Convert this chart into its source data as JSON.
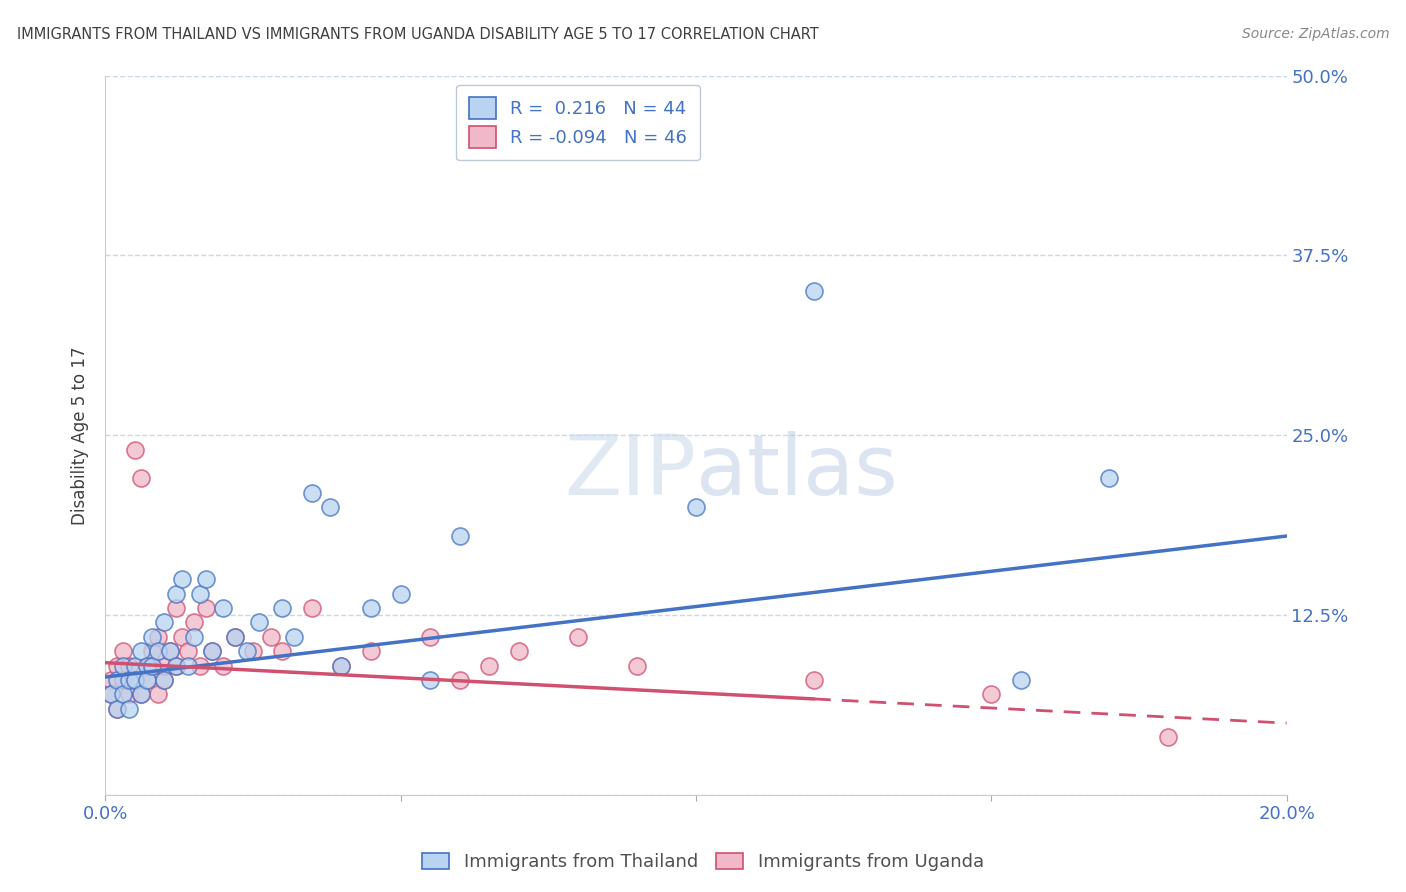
{
  "title": "IMMIGRANTS FROM THAILAND VS IMMIGRANTS FROM UGANDA DISABILITY AGE 5 TO 17 CORRELATION CHART",
  "source": "Source: ZipAtlas.com",
  "ylabel": "Disability Age 5 to 17",
  "xlim": [
    0.0,
    0.2
  ],
  "ylim": [
    0.0,
    0.5
  ],
  "xticks": [
    0.0,
    0.05,
    0.1,
    0.15,
    0.2
  ],
  "xtick_labels": [
    "0.0%",
    "",
    "",
    "",
    "20.0%"
  ],
  "ytick_labels": [
    "",
    "12.5%",
    "25.0%",
    "37.5%",
    "50.0%"
  ],
  "yticks": [
    0.0,
    0.125,
    0.25,
    0.375,
    0.5
  ],
  "thailand_R": 0.216,
  "thailand_N": 44,
  "uganda_R": -0.094,
  "uganda_N": 46,
  "thailand_color": "#b8d4f0",
  "uganda_color": "#f0b8c8",
  "thailand_line_color": "#4472c4",
  "uganda_line_color": "#d05070",
  "legend_x_labels": [
    "Immigrants from Thailand",
    "Immigrants from Uganda"
  ],
  "background_color": "#ffffff",
  "grid_color": "#c8d8e8",
  "title_color": "#404040",
  "tick_color": "#4472c4",
  "thailand_scatter_x": [
    0.001,
    0.002,
    0.002,
    0.003,
    0.003,
    0.004,
    0.004,
    0.005,
    0.005,
    0.006,
    0.006,
    0.007,
    0.007,
    0.008,
    0.008,
    0.009,
    0.01,
    0.01,
    0.011,
    0.012,
    0.012,
    0.013,
    0.014,
    0.015,
    0.016,
    0.017,
    0.018,
    0.02,
    0.022,
    0.024,
    0.026,
    0.03,
    0.032,
    0.035,
    0.038,
    0.04,
    0.045,
    0.05,
    0.055,
    0.06,
    0.1,
    0.12,
    0.155,
    0.17
  ],
  "thailand_scatter_y": [
    0.07,
    0.08,
    0.06,
    0.09,
    0.07,
    0.08,
    0.06,
    0.09,
    0.08,
    0.1,
    0.07,
    0.09,
    0.08,
    0.11,
    0.09,
    0.1,
    0.08,
    0.12,
    0.1,
    0.09,
    0.14,
    0.15,
    0.09,
    0.11,
    0.14,
    0.15,
    0.1,
    0.13,
    0.11,
    0.1,
    0.12,
    0.13,
    0.11,
    0.21,
    0.2,
    0.09,
    0.13,
    0.14,
    0.08,
    0.18,
    0.2,
    0.35,
    0.08,
    0.22
  ],
  "uganda_scatter_x": [
    0.001,
    0.001,
    0.002,
    0.002,
    0.003,
    0.003,
    0.004,
    0.004,
    0.005,
    0.005,
    0.006,
    0.006,
    0.007,
    0.007,
    0.008,
    0.008,
    0.009,
    0.009,
    0.01,
    0.01,
    0.011,
    0.012,
    0.012,
    0.013,
    0.014,
    0.015,
    0.016,
    0.017,
    0.018,
    0.02,
    0.022,
    0.025,
    0.028,
    0.03,
    0.035,
    0.04,
    0.045,
    0.055,
    0.06,
    0.065,
    0.07,
    0.08,
    0.09,
    0.12,
    0.15,
    0.18
  ],
  "uganda_scatter_y": [
    0.08,
    0.07,
    0.09,
    0.06,
    0.1,
    0.08,
    0.07,
    0.09,
    0.08,
    0.24,
    0.22,
    0.07,
    0.09,
    0.08,
    0.1,
    0.09,
    0.07,
    0.11,
    0.08,
    0.09,
    0.1,
    0.13,
    0.09,
    0.11,
    0.1,
    0.12,
    0.09,
    0.13,
    0.1,
    0.09,
    0.11,
    0.1,
    0.11,
    0.1,
    0.13,
    0.09,
    0.1,
    0.11,
    0.08,
    0.09,
    0.1,
    0.11,
    0.09,
    0.08,
    0.07,
    0.04
  ],
  "th_trend_start_y": 0.082,
  "th_trend_end_y": 0.18,
  "ug_trend_start_y": 0.092,
  "ug_trend_end_y": 0.05
}
